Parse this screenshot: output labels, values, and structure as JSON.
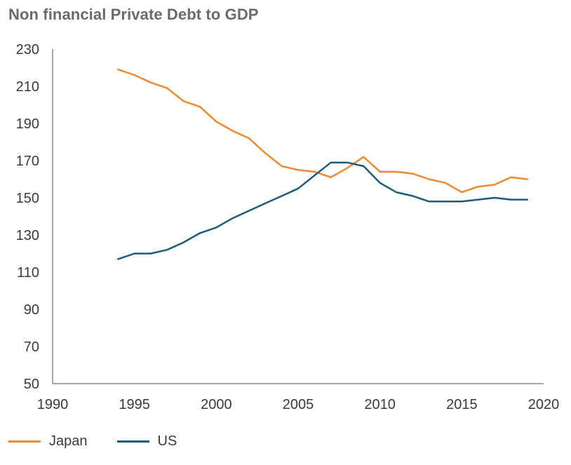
{
  "chart_data": {
    "type": "line",
    "title": "Non financial Private Debt to GDP",
    "xlabel": "",
    "ylabel": "",
    "xlim": [
      1990,
      2020
    ],
    "ylim": [
      50,
      230
    ],
    "xticks": [
      1990,
      1995,
      2000,
      2005,
      2010,
      2015,
      2020
    ],
    "yticks": [
      50,
      70,
      90,
      110,
      130,
      150,
      170,
      190,
      210,
      230
    ],
    "legend_position": "bottom-left",
    "grid": false,
    "x": [
      1994,
      1995,
      1996,
      1997,
      1998,
      1999,
      2000,
      2001,
      2002,
      2003,
      2004,
      2005,
      2006,
      2007,
      2008,
      2009,
      2010,
      2011,
      2012,
      2013,
      2014,
      2015,
      2016,
      2017,
      2018,
      2019
    ],
    "series": [
      {
        "name": "Japan",
        "color": "#ef8a2e",
        "values": [
          219,
          216,
          212,
          209,
          202,
          199,
          191,
          186,
          182,
          174,
          167,
          165,
          164,
          161,
          166,
          172,
          164,
          164,
          163,
          160,
          158,
          153,
          156,
          157,
          161,
          160
        ]
      },
      {
        "name": "US",
        "color": "#1a5d7a",
        "values": [
          117,
          120,
          120,
          122,
          126,
          131,
          134,
          139,
          143,
          147,
          151,
          155,
          162,
          169,
          169,
          167,
          158,
          153,
          151,
          148,
          148,
          148,
          149,
          150,
          149,
          149
        ]
      }
    ]
  }
}
